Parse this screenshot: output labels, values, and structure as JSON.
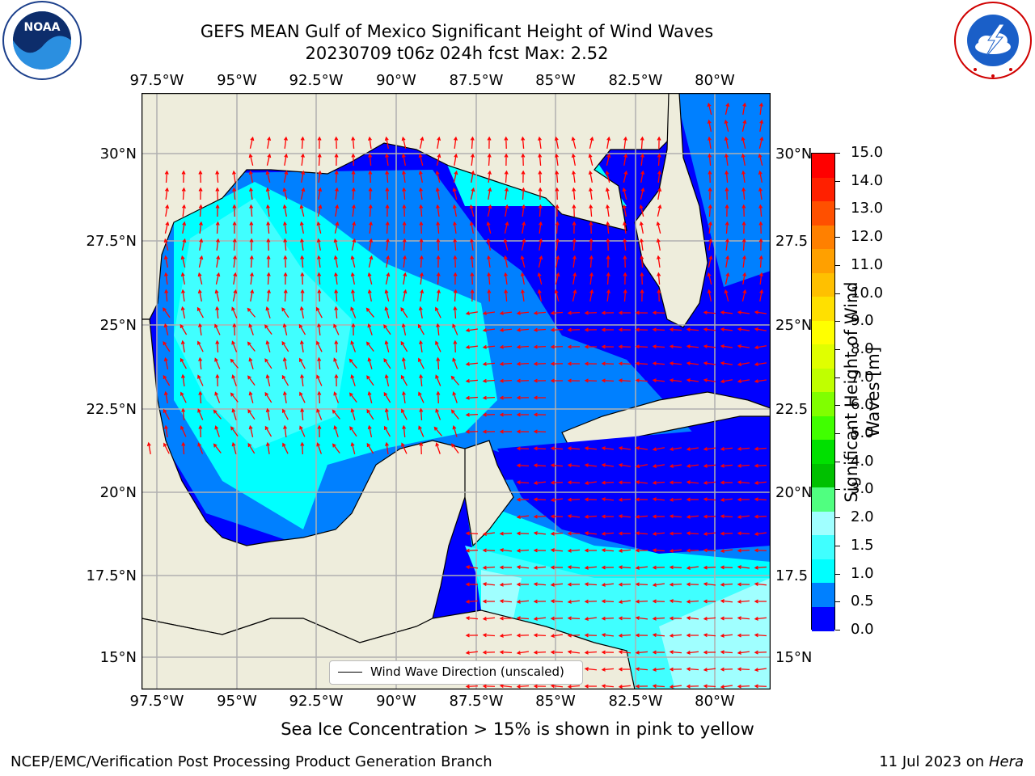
{
  "header": {
    "title_line1": "GEFS MEAN Gulf of Mexico Significant Height of Wind Waves",
    "title_line2": "20230709 t06z 024h fcst   Max: 2.52"
  },
  "logos": {
    "noaa_text": "NOAA",
    "noaa_ring": "NATIONAL OCEANIC AND ATMOSPHERIC ADMINISTRATION · U.S. DEPARTMENT OF COMMERCE",
    "nws_ring": "NATIONAL WEATHER SERVICE"
  },
  "map": {
    "lon_labels": [
      "97.5°W",
      "95°W",
      "92.5°W",
      "90°W",
      "87.5°W",
      "85°W",
      "82.5°W",
      "80°W"
    ],
    "lat_labels_left": [
      "30°N",
      "27.5°N",
      "25°N",
      "22.5°N",
      "20°N",
      "17.5°N",
      "15°N"
    ],
    "lat_labels_right": [
      "30°N",
      "27.5",
      "25°N",
      "22.5",
      "20°N",
      "17.5",
      "15°N"
    ],
    "legend_label": "Wind Wave Direction (unscaled)",
    "colors": {
      "land": "#eeeddc",
      "ocean_0_05": "#0000ff",
      "ocean_05_1": "#0080ff",
      "ocean_1_15": "#00ffff",
      "ocean_15_2": "#40ffff",
      "ocean_2_3": "#a0ffff",
      "arrows": "#ff0000",
      "grid": "#b0b0b0"
    }
  },
  "colorbar": {
    "ticks": [
      "15.0",
      "14.0",
      "13.0",
      "12.0",
      "11.0",
      "10.0",
      "9.0",
      "8.0",
      "7.0",
      "6.0",
      "5.0",
      "4.0",
      "3.0",
      "2.0",
      "1.5",
      "1.0",
      "0.5",
      "0.0"
    ],
    "colors": [
      "#ff0000",
      "#ff2000",
      "#ff5000",
      "#ff8000",
      "#ffa000",
      "#ffc000",
      "#ffe000",
      "#ffff00",
      "#e0ff00",
      "#c0ff00",
      "#80ff00",
      "#40ff00",
      "#00e000",
      "#00c000",
      "#50ff80",
      "#a0ffff",
      "#40ffff",
      "#00ffff",
      "#0080ff",
      "#0000ff"
    ],
    "axis_label_line1": "Significant Height of Wind",
    "axis_label_line2": "Waves [m]"
  },
  "footer": {
    "note": "Sea Ice Concentration > 15% is shown in pink to yellow",
    "credit": "NCEP/EMC/Verification Post Processing Product Generation Branch",
    "date": "11 Jul 2023 on ",
    "machine": "Hera"
  }
}
